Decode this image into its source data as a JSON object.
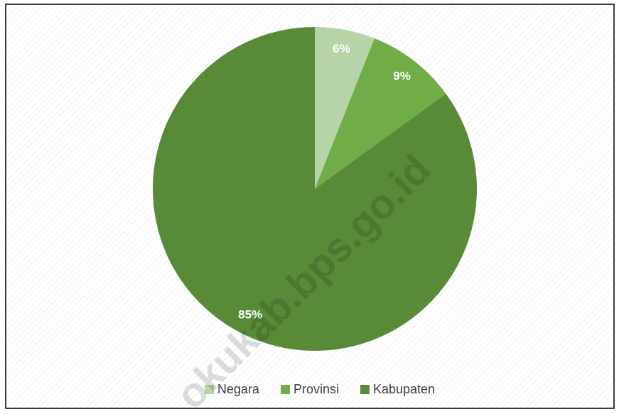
{
  "chart_data": {
    "type": "pie",
    "categories": [
      "Negara",
      "Provinsi",
      "Kabupaten"
    ],
    "values": [
      6,
      9,
      85
    ],
    "value_labels": [
      "6%",
      "9%",
      "85%"
    ],
    "colors": [
      "#b7d4a8",
      "#70ad47",
      "#588a38"
    ],
    "legend": "bottom",
    "watermark": "okukab.bps.go.id"
  }
}
